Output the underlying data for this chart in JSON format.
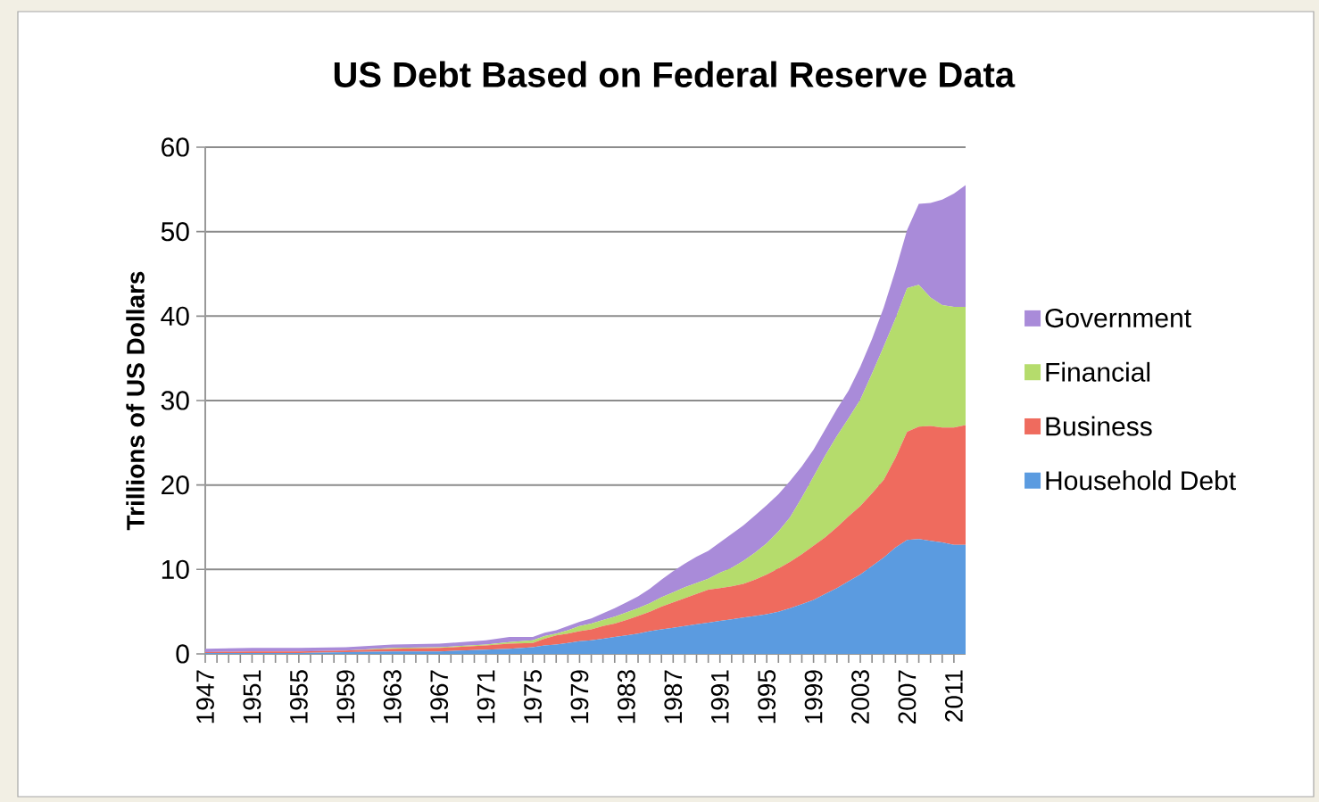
{
  "chart_data": {
    "type": "area",
    "title": "US Debt Based on Federal Reserve Data",
    "ylabel": "Trillions of US Dollars",
    "x": [
      1947,
      1951,
      1955,
      1959,
      1963,
      1967,
      1971,
      1973,
      1975,
      1976,
      1977,
      1978,
      1979,
      1980,
      1981,
      1982,
      1983,
      1984,
      1985,
      1986,
      1987,
      1988,
      1989,
      1990,
      1991,
      1992,
      1993,
      1994,
      1995,
      1996,
      1997,
      1998,
      1999,
      2000,
      2001,
      2002,
      2003,
      2004,
      2005,
      2006,
      2007,
      2008,
      2009,
      2010,
      2011,
      2012
    ],
    "stacked": true,
    "series": [
      {
        "name": "Household Debt",
        "color": "#5b9be0",
        "values": [
          0.1,
          0.1,
          0.1,
          0.2,
          0.3,
          0.3,
          0.5,
          0.6,
          0.8,
          1.0,
          1.1,
          1.3,
          1.5,
          1.6,
          1.8,
          2.0,
          2.2,
          2.4,
          2.7,
          2.9,
          3.1,
          3.3,
          3.5,
          3.7,
          3.9,
          4.1,
          4.3,
          4.5,
          4.7,
          5.0,
          5.4,
          5.9,
          6.4,
          7.1,
          7.8,
          8.6,
          9.4,
          10.4,
          11.4,
          12.6,
          13.5,
          13.6,
          13.4,
          13.2,
          12.9,
          12.9
        ]
      },
      {
        "name": "Business",
        "color": "#ef6b5e",
        "values": [
          0.1,
          0.2,
          0.2,
          0.2,
          0.3,
          0.4,
          0.5,
          0.6,
          0.5,
          0.8,
          1.1,
          1.1,
          1.2,
          1.3,
          1.5,
          1.6,
          1.8,
          2.1,
          2.3,
          2.7,
          3.0,
          3.3,
          3.6,
          3.9,
          3.9,
          3.9,
          4.0,
          4.3,
          4.7,
          5.1,
          5.5,
          5.9,
          6.4,
          6.7,
          7.2,
          7.7,
          8.1,
          8.6,
          9.2,
          10.6,
          12.8,
          13.3,
          13.6,
          13.6,
          13.9,
          14.2
        ]
      },
      {
        "name": "Financial",
        "color": "#b5dc6c",
        "values": [
          0,
          0,
          0,
          0,
          0.1,
          0.1,
          0.1,
          0.2,
          0.3,
          0.3,
          0.2,
          0.4,
          0.6,
          0.7,
          0.7,
          0.8,
          0.9,
          0.9,
          1.0,
          1.1,
          1.2,
          1.3,
          1.3,
          1.3,
          1.8,
          2.2,
          2.7,
          3.2,
          3.7,
          4.4,
          5.3,
          6.7,
          8.2,
          9.7,
          10.8,
          11.6,
          12.6,
          14.2,
          15.8,
          16.5,
          17.0,
          16.8,
          15.2,
          14.5,
          14.3,
          14.0
        ]
      },
      {
        "name": "Government",
        "color": "#a98bd9",
        "values": [
          0.4,
          0.4,
          0.4,
          0.4,
          0.4,
          0.4,
          0.5,
          0.6,
          0.4,
          0.4,
          0.4,
          0.5,
          0.5,
          0.6,
          0.8,
          1.0,
          1.2,
          1.4,
          1.7,
          2.1,
          2.5,
          2.8,
          3.1,
          3.3,
          3.6,
          4.0,
          4.2,
          4.4,
          4.5,
          4.4,
          4.3,
          3.7,
          3.2,
          3.1,
          3.2,
          3.3,
          3.9,
          4.1,
          4.6,
          5.7,
          6.9,
          9.6,
          11.2,
          12.5,
          13.4,
          14.4
        ]
      }
    ],
    "xlim": [
      1947,
      2012
    ],
    "ylim": [
      0,
      60
    ],
    "xticks": [
      1947,
      1951,
      1955,
      1959,
      1963,
      1967,
      1971,
      1975,
      1979,
      1983,
      1987,
      1991,
      1995,
      1999,
      2003,
      2007,
      2011
    ],
    "yticks": [
      0,
      10,
      20,
      30,
      40,
      50,
      60
    ],
    "grid": "y",
    "legend": "right"
  }
}
